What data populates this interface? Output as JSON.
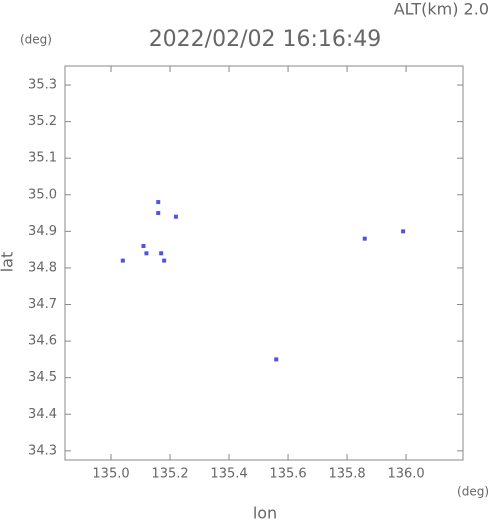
{
  "chart_data": {
    "type": "scatter",
    "title": "2022/02/02 16:16:49",
    "subtitle": "ALT(km) 2.0",
    "x_label": "lon",
    "y_label": "lat",
    "x_unit": "(deg)",
    "y_unit": "(deg)",
    "xlim": [
      134.844,
      136.193
    ],
    "ylim": [
      34.275,
      35.352
    ],
    "xticks": [
      {
        "value": 135,
        "label": "135.0"
      },
      135.2,
      135.4,
      135.6,
      135.8,
      {
        "value": 136,
        "label": "136.0"
      }
    ],
    "yticks": [
      34.3,
      34.4,
      34.5,
      34.6,
      34.7,
      34.8,
      34.9,
      {
        "value": 35,
        "label": "35.0"
      },
      35.1,
      35.2,
      35.3
    ],
    "color": "#4a55e6",
    "x": [
      135.04,
      135.12,
      135.17,
      135.18,
      135.16,
      135.16,
      135.22,
      135.11,
      135.56,
      135.86,
      135.99
    ],
    "y": [
      34.82,
      34.84,
      34.84,
      34.82,
      34.98,
      34.95,
      34.94,
      34.86,
      34.55,
      34.88,
      34.9
    ]
  }
}
